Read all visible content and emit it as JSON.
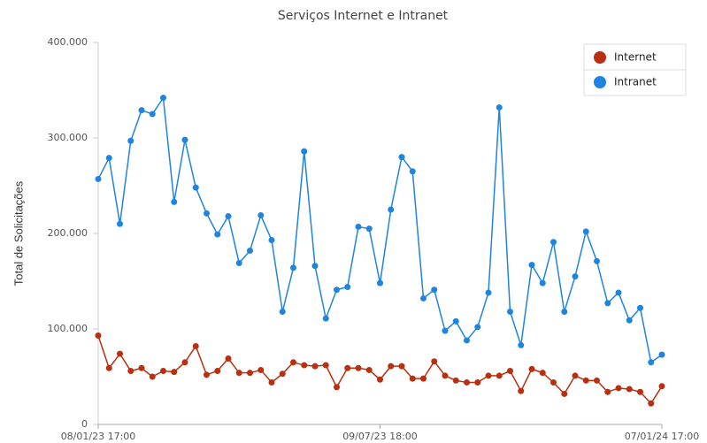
{
  "chart_data": {
    "type": "line",
    "title": "Serviços Internet e Intranet",
    "y_label": "Total de Solicitações",
    "categories": [
      "08/01/23 17:00",
      null,
      null,
      null,
      null,
      null,
      null,
      null,
      null,
      null,
      null,
      null,
      null,
      null,
      null,
      null,
      null,
      null,
      null,
      null,
      null,
      null,
      null,
      null,
      null,
      null,
      "09/07/23 18:00",
      null,
      null,
      null,
      null,
      null,
      null,
      null,
      null,
      null,
      null,
      null,
      null,
      null,
      null,
      null,
      null,
      null,
      null,
      null,
      null,
      null,
      null,
      null,
      null,
      null,
      "07/01/24 17:00"
    ],
    "series": [
      {
        "name": "Internet",
        "color": "#b83010",
        "values": [
          93000,
          59000,
          74000,
          56000,
          59000,
          50000,
          56000,
          55000,
          65000,
          82000,
          52000,
          56000,
          69000,
          54000,
          54000,
          57000,
          44000,
          53000,
          65000,
          62000,
          61000,
          62000,
          39000,
          59000,
          59000,
          57000,
          47000,
          61000,
          61000,
          48000,
          48000,
          66000,
          51000,
          46000,
          44000,
          44000,
          51000,
          51000,
          56000,
          35000,
          58000,
          54000,
          44000,
          32000,
          51000,
          46000,
          46000,
          34000,
          38000,
          37000,
          34000,
          22000,
          40000
        ]
      },
      {
        "name": "Intranet",
        "color": "#1e84e0",
        "values": [
          257000,
          279000,
          210000,
          297000,
          329000,
          325000,
          342000,
          233000,
          298000,
          248000,
          221000,
          199000,
          218000,
          169000,
          182000,
          219000,
          193000,
          118000,
          164000,
          286000,
          166000,
          111000,
          141000,
          144000,
          207000,
          205000,
          148000,
          225000,
          280000,
          265000,
          132000,
          141000,
          98000,
          108000,
          88000,
          102000,
          138000,
          332000,
          118000,
          83000,
          167000,
          148000,
          191000,
          118000,
          155000,
          202000,
          171000,
          127000,
          138000,
          109000,
          122000,
          65000,
          73000
        ]
      }
    ],
    "ylim": [
      0,
      400000
    ],
    "yticks": [
      0,
      {
        "value": 100000,
        "label": "100.000"
      },
      {
        "value": 200000,
        "label": "200.000"
      },
      {
        "value": 300000,
        "label": "300.000"
      },
      {
        "value": 400000,
        "label": "400.000"
      }
    ],
    "legend": "top-right"
  }
}
